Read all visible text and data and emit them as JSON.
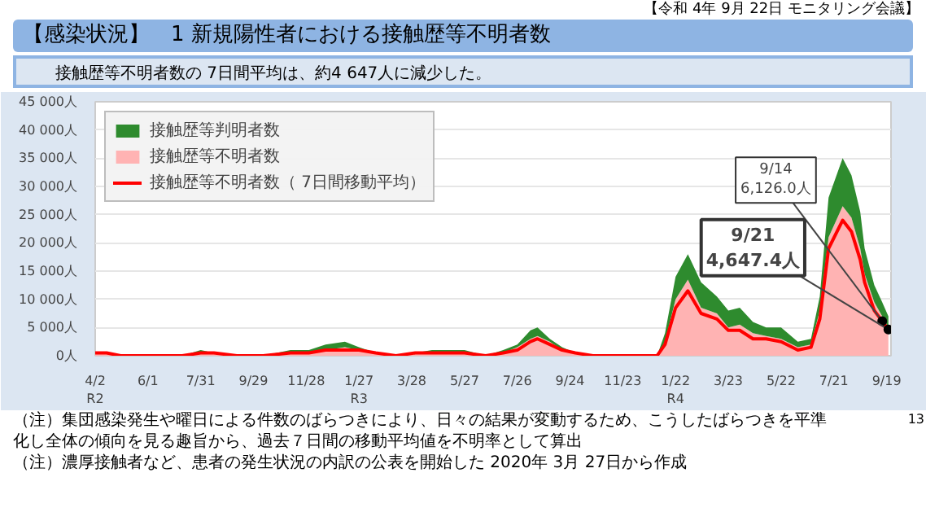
{
  "chart_data": {
    "type": "area",
    "title": "【感染状況】　1 新規陽性者における接触歴等不明者数",
    "subtitle": "接触歴等不明者数の 7日間平均は、約4 647人に減少した。",
    "x": [
      "2020-04-02",
      "2020-04-15",
      "2020-05-01",
      "2020-05-20",
      "2020-06-15",
      "2020-07-10",
      "2020-07-31",
      "2020-08-15",
      "2020-09-10",
      "2020-10-10",
      "2020-11-10",
      "2020-12-01",
      "2020-12-20",
      "2021-01-11",
      "2021-01-27",
      "2021-02-15",
      "2021-03-10",
      "2021-04-01",
      "2021-04-20",
      "2021-05-10",
      "2021-05-27",
      "2021-06-20",
      "2021-07-10",
      "2021-07-26",
      "2021-08-10",
      "2021-08-18",
      "2021-09-01",
      "2021-09-15",
      "2021-09-30",
      "2021-10-20",
      "2021-11-23",
      "2021-12-20",
      "2022-01-01",
      "2022-01-10",
      "2022-01-22",
      "2022-02-05",
      "2022-02-20",
      "2022-03-10",
      "2022-03-23",
      "2022-04-05",
      "2022-04-20",
      "2022-05-05",
      "2022-05-22",
      "2022-06-10",
      "2022-06-25",
      "2022-07-05",
      "2022-07-15",
      "2022-07-31",
      "2022-08-10",
      "2022-08-20",
      "2022-08-25",
      "2022-09-05",
      "2022-09-14",
      "2022-09-21"
    ],
    "stacked": true,
    "series": [
      {
        "name": "接触歴等不明者数",
        "color": "#ffb3b3",
        "values": [
          500,
          500,
          0,
          0,
          0,
          0,
          500,
          500,
          0,
          0,
          500,
          500,
          1000,
          1500,
          1000,
          500,
          0,
          500,
          500,
          500,
          500,
          0,
          500,
          1500,
          3000,
          3500,
          2500,
          1000,
          500,
          0,
          0,
          0,
          0,
          2500,
          10000,
          13500,
          8500,
          7500,
          5000,
          5500,
          4000,
          3500,
          3000,
          1500,
          2000,
          8000,
          21000,
          26500,
          24500,
          19000,
          14500,
          9500,
          7000,
          5000
        ]
      },
      {
        "name": "接触歴等判明者数",
        "color": "#2e8b2e",
        "values": [
          0,
          0,
          0,
          0,
          0,
          0,
          500,
          0,
          0,
          0,
          500,
          500,
          1000,
          1000,
          500,
          0,
          0,
          0,
          500,
          500,
          500,
          0,
          500,
          500,
          1500,
          1500,
          500,
          500,
          0,
          0,
          0,
          0,
          0,
          1500,
          4000,
          4500,
          4500,
          3000,
          3000,
          3000,
          2000,
          1500,
          2000,
          1000,
          1000,
          2500,
          7000,
          8500,
          7500,
          6500,
          4500,
          3000,
          2500,
          2000
        ]
      },
      {
        "name": "接触歴等不明者数（ 7日間移動平均）",
        "type": "line",
        "color": "#ff0000",
        "values": [
          500,
          500,
          0,
          0,
          0,
          0,
          500,
          500,
          0,
          0,
          500,
          500,
          1000,
          1000,
          1000,
          500,
          0,
          500,
          500,
          500,
          500,
          0,
          500,
          1000,
          2500,
          3000,
          2000,
          1000,
          500,
          0,
          0,
          0,
          0,
          2000,
          8500,
          11500,
          7500,
          6500,
          4500,
          4500,
          3000,
          3000,
          2500,
          1000,
          1500,
          6500,
          19000,
          24000,
          22000,
          17000,
          13000,
          8000,
          6126,
          4647.4
        ]
      }
    ],
    "xlim": [
      "2020-04-02",
      "2022-09-24"
    ],
    "xticks": [
      {
        "value": "2020-04-02",
        "label": "4/2\nR2"
      },
      {
        "value": "2020-06-01",
        "label": "6/1"
      },
      {
        "value": "2020-07-31",
        "label": "7/31"
      },
      {
        "value": "2020-09-29",
        "label": "9/29"
      },
      {
        "value": "2020-11-28",
        "label": "11/28"
      },
      {
        "value": "2021-01-27",
        "label": "1/27\nR3"
      },
      {
        "value": "2021-03-28",
        "label": "3/28"
      },
      {
        "value": "2021-05-27",
        "label": "5/27"
      },
      {
        "value": "2021-07-26",
        "label": "7/26"
      },
      {
        "value": "2021-09-24",
        "label": "9/24"
      },
      {
        "value": "2021-11-23",
        "label": "11/23"
      },
      {
        "value": "2022-01-22",
        "label": "1/22\nR4"
      },
      {
        "value": "2022-03-23",
        "label": "3/23"
      },
      {
        "value": "2022-05-22",
        "label": "5/22"
      },
      {
        "value": "2022-07-21",
        "label": "7/21"
      },
      {
        "value": "2022-09-19",
        "label": "9/19"
      }
    ],
    "ylim": [
      0,
      45000
    ],
    "yticks": [
      {
        "value": 0,
        "label": "0人"
      },
      {
        "value": 5000,
        "label": "5 000人"
      },
      {
        "value": 10000,
        "label": "10 000人"
      },
      {
        "value": 15000,
        "label": "15 000人"
      },
      {
        "value": 20000,
        "label": "20 000人"
      },
      {
        "value": 25000,
        "label": "25 000人"
      },
      {
        "value": 30000,
        "label": "30 000人"
      },
      {
        "value": 35000,
        "label": "35 000人"
      },
      {
        "value": 40000,
        "label": "40 000人"
      },
      {
        "value": 45000,
        "label": "45 000人"
      }
    ],
    "grid": "y",
    "legend": "top left",
    "annotations": [
      "【令和 4年 9月 22日 モニタリング会議】",
      "（注）集団感染発生や曜日による件数のばらつきにより、日々の結果が変動するため、こうしたばらつきを平準化し全体の傾向を見る趣旨から、過去７日間の移動平均値を不明率として算出",
      "（注）濃厚接触者など、患者の発生状況の内訳の公表を開始した 2020年 3月 27日から作成",
      "13",
      {
        "text": "9/14\n6,126.0人",
        "x": "2022-09-14",
        "y": 6126
      },
      {
        "text": "9/21\n4,647.4人",
        "x": "2022-09-21",
        "y": 4647.4
      }
    ]
  }
}
